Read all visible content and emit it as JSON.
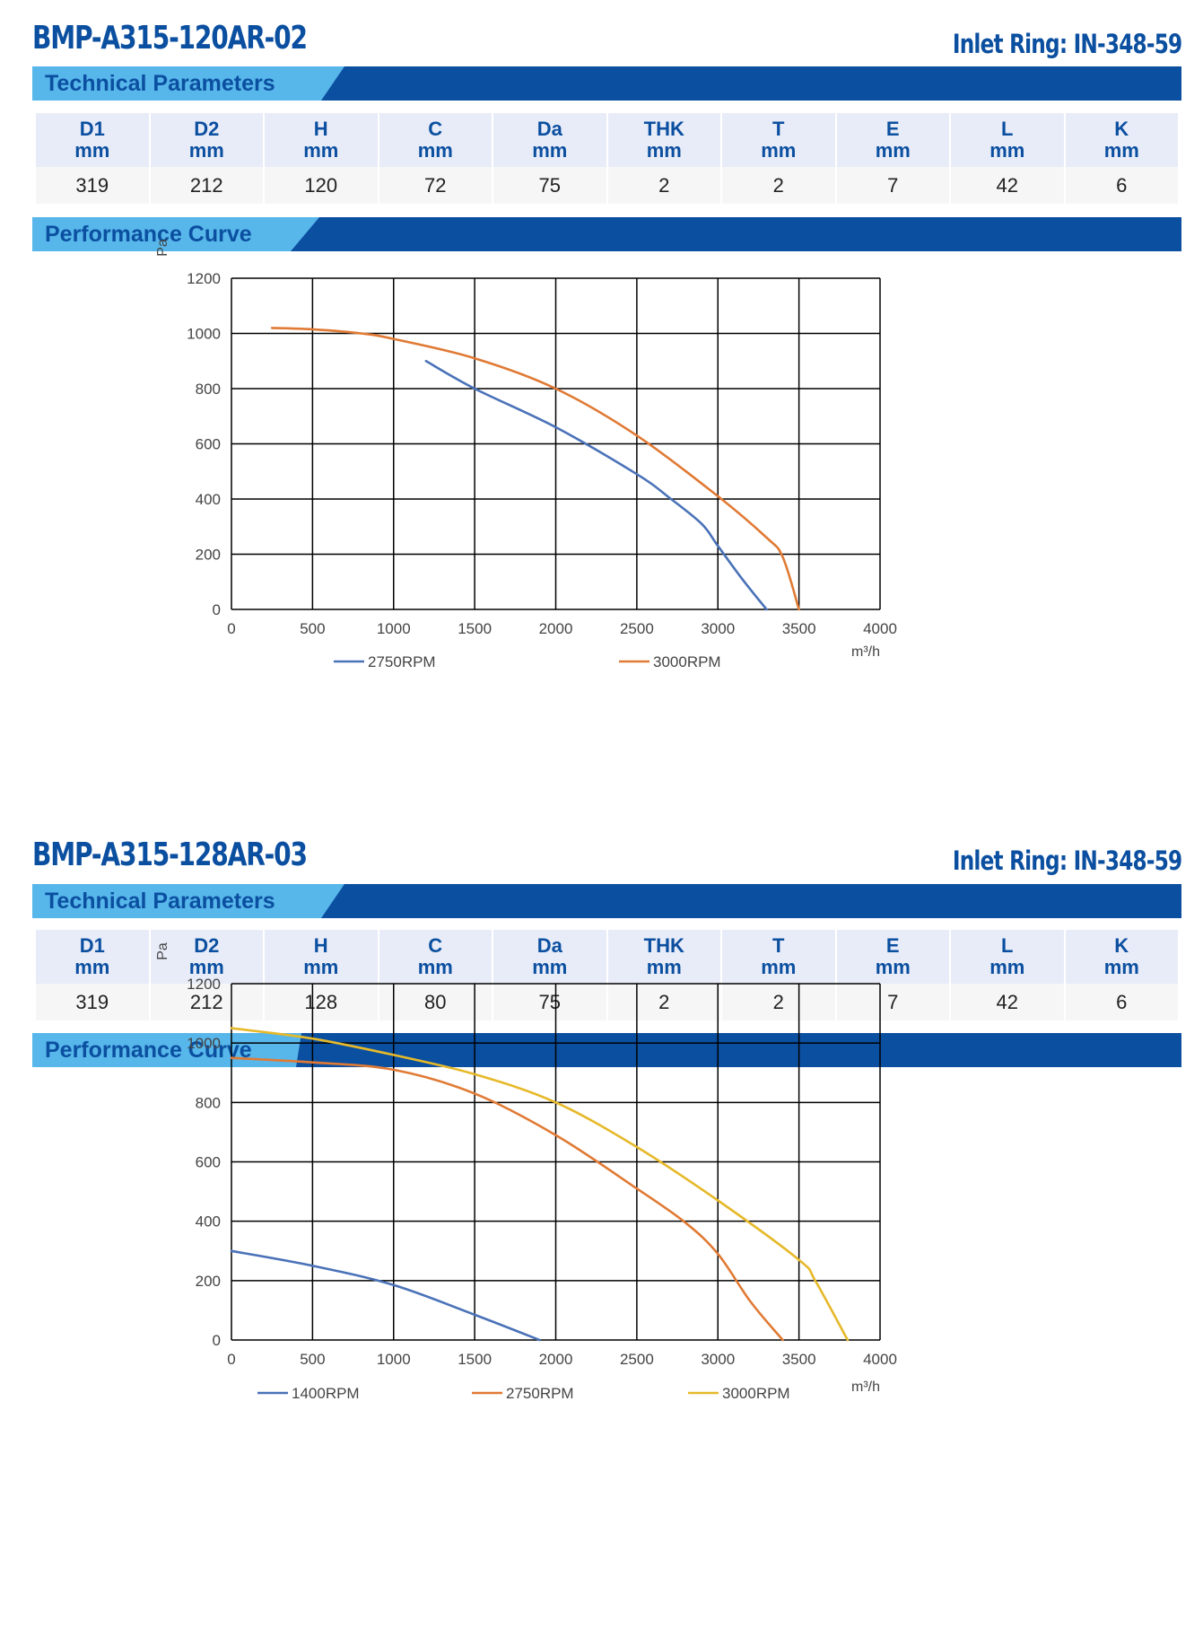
{
  "sections": [
    {
      "model": "BMP-A315-120AR-02",
      "inlet_ring": "Inlet Ring: IN-348-59",
      "tech_label": "Technical Parameters",
      "perf_label": "Performance Curve",
      "params": [
        {
          "name": "D1",
          "unit": "mm",
          "value": "319"
        },
        {
          "name": "D2",
          "unit": "mm",
          "value": "212"
        },
        {
          "name": "H",
          "unit": "mm",
          "value": "120"
        },
        {
          "name": "C",
          "unit": "mm",
          "value": "72"
        },
        {
          "name": "Da",
          "unit": "mm",
          "value": "75"
        },
        {
          "name": "THK",
          "unit": "mm",
          "value": "2"
        },
        {
          "name": "T",
          "unit": "mm",
          "value": "2"
        },
        {
          "name": "E",
          "unit": "mm",
          "value": "7"
        },
        {
          "name": "L",
          "unit": "mm",
          "value": "42"
        },
        {
          "name": "K",
          "unit": "mm",
          "value": "6"
        }
      ]
    },
    {
      "model": "BMP-A315-128AR-03",
      "inlet_ring": "Inlet Ring: IN-348-59",
      "tech_label": "Technical Parameters",
      "perf_label": "Performance Curve",
      "params": [
        {
          "name": "D1",
          "unit": "mm",
          "value": "319"
        },
        {
          "name": "D2",
          "unit": "mm",
          "value": "212"
        },
        {
          "name": "H",
          "unit": "mm",
          "value": "128"
        },
        {
          "name": "C",
          "unit": "mm",
          "value": "80"
        },
        {
          "name": "Da",
          "unit": "mm",
          "value": "75"
        },
        {
          "name": "THK",
          "unit": "mm",
          "value": "2"
        },
        {
          "name": "T",
          "unit": "mm",
          "value": "2"
        },
        {
          "name": "E",
          "unit": "mm",
          "value": "7"
        },
        {
          "name": "L",
          "unit": "mm",
          "value": "42"
        },
        {
          "name": "K",
          "unit": "mm",
          "value": "6"
        }
      ]
    }
  ],
  "colors": {
    "brand_blue": "#0b4fa0",
    "banner_light": "#57b6ea",
    "header_bg": "#e8ecf8"
  },
  "chart_data": [
    {
      "type": "line",
      "xlabel": "m³/h",
      "ylabel": "Pa",
      "xlim": [
        0,
        4000
      ],
      "ylim": [
        0,
        1200
      ],
      "xticks": [
        0,
        500,
        1000,
        1500,
        2000,
        2500,
        3000,
        3500,
        4000
      ],
      "yticks": [
        0,
        200,
        400,
        600,
        800,
        1000,
        1200
      ],
      "grid": true,
      "legend_position": "bottom",
      "series": [
        {
          "name": "2750RPM",
          "color": "#4a72b8",
          "x": [
            1200,
            1500,
            2000,
            2500,
            2700,
            2900,
            3000,
            3150,
            3300
          ],
          "y": [
            900,
            800,
            660,
            490,
            405,
            310,
            230,
            110,
            0
          ]
        },
        {
          "name": "3000RPM",
          "color": "#e07a34",
          "x": [
            250,
            500,
            800,
            1000,
            1500,
            2000,
            2500,
            3000,
            3300,
            3400,
            3500
          ],
          "y": [
            1020,
            1015,
            1000,
            980,
            910,
            800,
            630,
            410,
            260,
            190,
            0
          ]
        }
      ]
    },
    {
      "type": "line",
      "xlabel": "m³/h",
      "ylabel": "Pa",
      "xlim": [
        0,
        4000
      ],
      "ylim": [
        0,
        1200
      ],
      "xticks": [
        0,
        500,
        1000,
        1500,
        2000,
        2500,
        3000,
        3500,
        4000
      ],
      "yticks": [
        0,
        200,
        400,
        600,
        800,
        1000,
        1200
      ],
      "grid": true,
      "legend_position": "bottom",
      "series": [
        {
          "name": "1400RPM",
          "color": "#4a72b8",
          "x": [
            0,
            500,
            1000,
            1500,
            1900
          ],
          "y": [
            300,
            250,
            185,
            85,
            0
          ]
        },
        {
          "name": "2750RPM",
          "color": "#e07a34",
          "x": [
            0,
            500,
            1000,
            1500,
            2000,
            2500,
            2800,
            3000,
            3200,
            3400
          ],
          "y": [
            950,
            935,
            910,
            830,
            690,
            510,
            395,
            290,
            130,
            0
          ]
        },
        {
          "name": "3000RPM",
          "color": "#e6b92a",
          "x": [
            0,
            500,
            1000,
            1500,
            2000,
            2500,
            3000,
            3500,
            3600,
            3800
          ],
          "y": [
            1050,
            1015,
            960,
            895,
            800,
            650,
            470,
            270,
            200,
            0
          ]
        }
      ]
    }
  ]
}
